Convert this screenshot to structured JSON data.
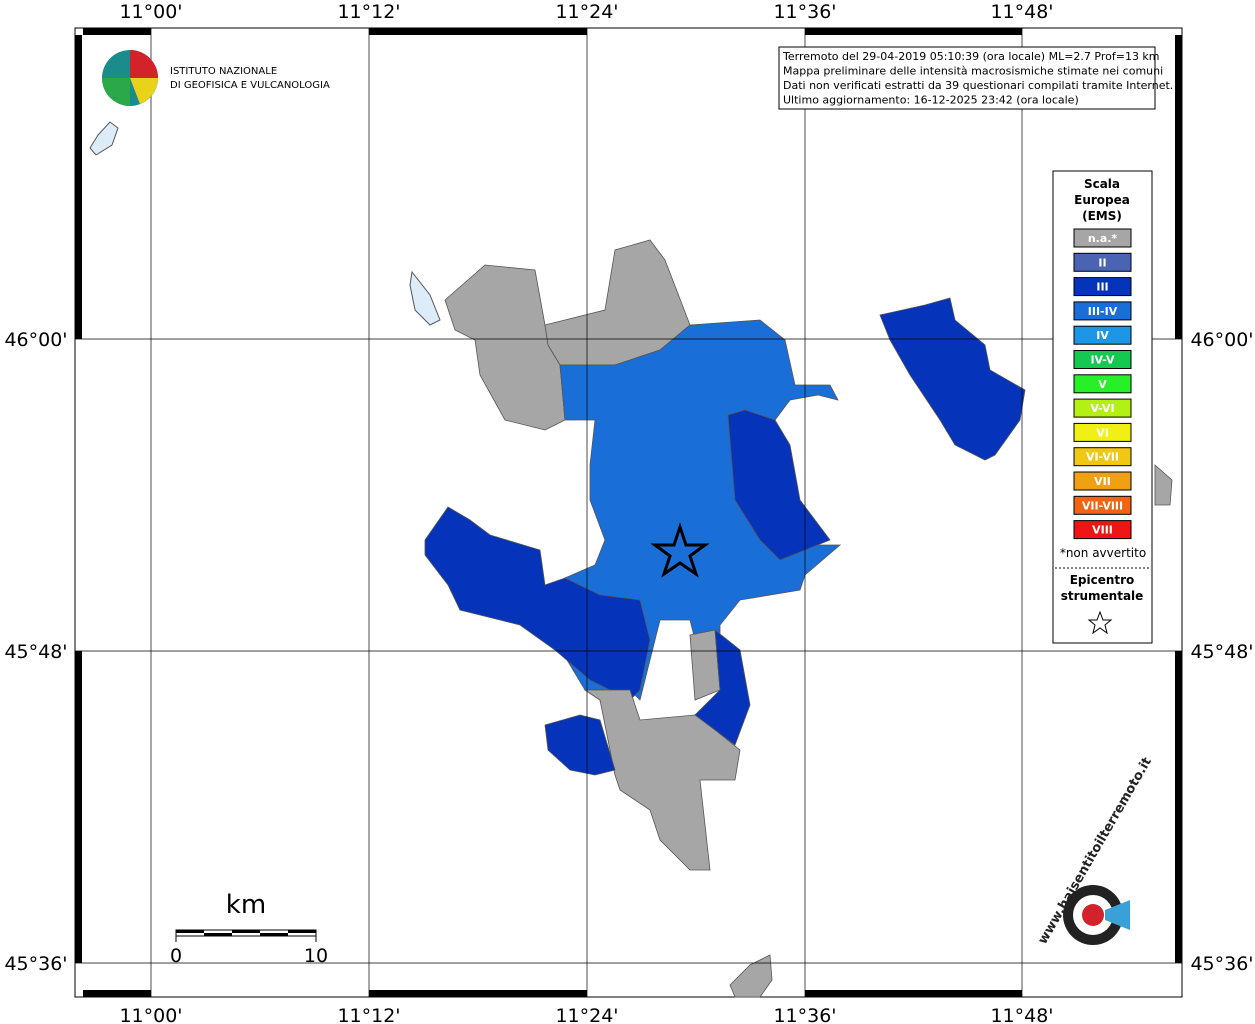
{
  "lon_labels": [
    "11°00'",
    "11°12'",
    "11°24'",
    "11°36'",
    "11°48'"
  ],
  "lat_labels": [
    "46°00'",
    "45°48'",
    "45°36'"
  ],
  "logo": {
    "line1": "ISTITUTO NAZIONALE",
    "line2": "DI GEOFISICA E VULCANOLOGIA"
  },
  "info": [
    "Terremoto del 29-04-2019 05:10:39 (ora locale) ML=2.7 Prof=13 km",
    "Mappa preliminare delle intensità macrosismiche stimate nei comuni",
    "Dati non verificati estratti da 39 questionari compilati tramite Internet.",
    "Ultimo aggiornamento: 16-12-2025 23:42 (ora locale)"
  ],
  "legend": {
    "title": [
      "Scala",
      "Europea",
      "(EMS)"
    ],
    "items": [
      {
        "label": "n.a.*",
        "color": "#a6a6a6"
      },
      {
        "label": "II",
        "color": "#4a64b4"
      },
      {
        "label": "III",
        "color": "#0533b9"
      },
      {
        "label": "III-IV",
        "color": "#1a6ed8"
      },
      {
        "label": "IV",
        "color": "#1e96e6"
      },
      {
        "label": "IV-V",
        "color": "#14c850"
      },
      {
        "label": "V",
        "color": "#28f028"
      },
      {
        "label": "V-VI",
        "color": "#b4f014"
      },
      {
        "label": "VI",
        "color": "#f0f014"
      },
      {
        "label": "VI-VII",
        "color": "#f0c814"
      },
      {
        "label": "VII",
        "color": "#f0a014"
      },
      {
        "label": "VII-VIII",
        "color": "#f06414"
      },
      {
        "label": "VIII",
        "color": "#f01414"
      }
    ],
    "note": "*non avvertito",
    "epicenter": [
      "Epicentro",
      "strumentale"
    ]
  },
  "scale": {
    "unit": "km",
    "start": "0",
    "end": "10"
  },
  "site": "www.haisentitoilterremoto.it"
}
